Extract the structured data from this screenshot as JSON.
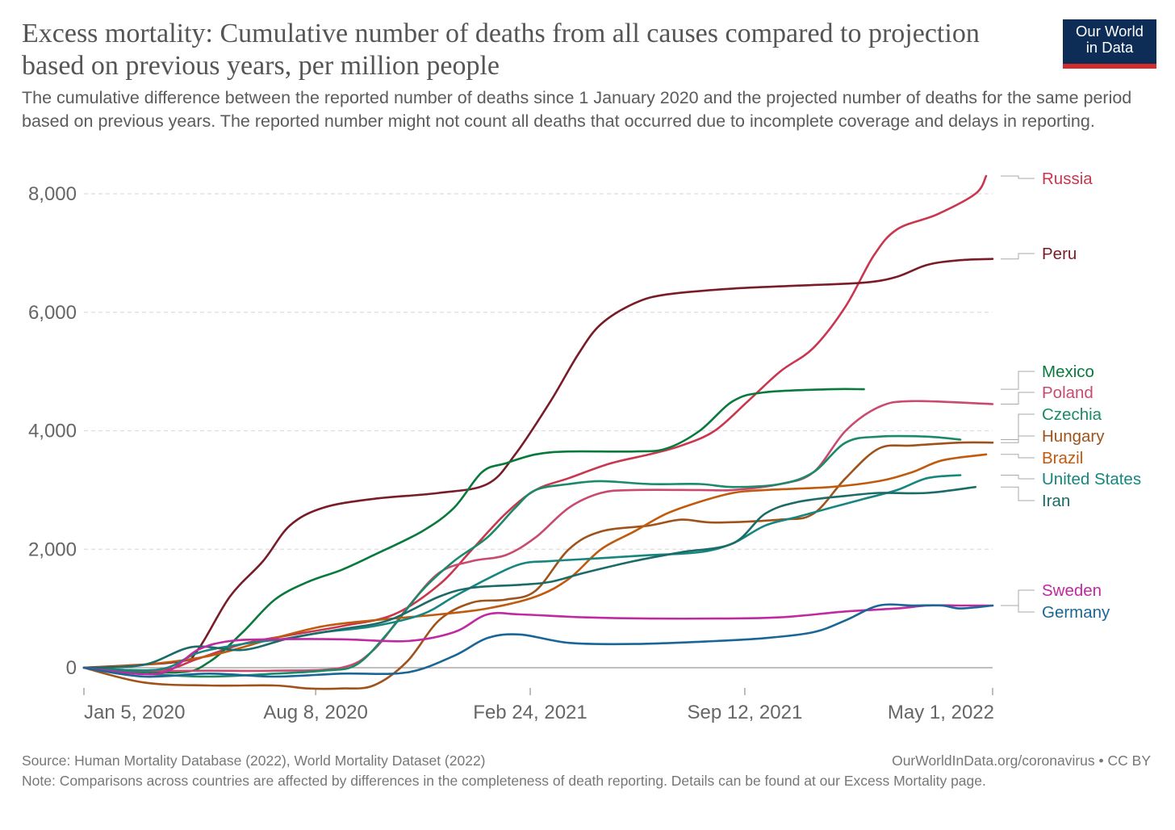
{
  "chart_data": {
    "type": "line",
    "title": "Excess mortality: Cumulative number of deaths from all causes compared to projection based on previous years, per million people",
    "subtitle": "The cumulative difference between the reported number of deaths since 1 January 2020 and the projected number of deaths for the same period based on previous years. The reported number might not count all deaths that occurred due to incomplete coverage and delays in reporting.",
    "xlabel": "",
    "ylabel": "",
    "x_ticks": [
      "Jan 5, 2020",
      "Aug 8, 2020",
      "Feb 24, 2021",
      "Sep 12, 2021",
      "May 1, 2022"
    ],
    "x_tick_dates": [
      "2020-01-05",
      "2020-08-08",
      "2021-02-24",
      "2021-09-12",
      "2022-05-01"
    ],
    "y_ticks": [
      0,
      2000,
      4000,
      6000,
      8000
    ],
    "y_tick_labels": [
      "0",
      "2,000",
      "4,000",
      "6,000",
      "8,000"
    ],
    "xlim": [
      "2020-01-05",
      "2022-05-01"
    ],
    "ylim": [
      -500,
      8500
    ],
    "grid": {
      "horizontal": true,
      "vertical": false
    },
    "legend": "right, labels at line ends",
    "series": [
      {
        "name": "Russia",
        "color": "#c9374f",
        "points": [
          [
            "2020-01-05",
            0
          ],
          [
            "2020-03-15",
            -50
          ],
          [
            "2020-04-20",
            150
          ],
          [
            "2020-06-01",
            400
          ],
          [
            "2020-07-15",
            550
          ],
          [
            "2020-09-01",
            700
          ],
          [
            "2020-10-20",
            900
          ],
          [
            "2020-12-01",
            1400
          ],
          [
            "2021-01-01",
            2000
          ],
          [
            "2021-02-01",
            2600
          ],
          [
            "2021-03-01",
            3000
          ],
          [
            "2021-04-01",
            3200
          ],
          [
            "2021-05-10",
            3450
          ],
          [
            "2021-06-15",
            3600
          ],
          [
            "2021-07-15",
            3750
          ],
          [
            "2021-08-15",
            4000
          ],
          [
            "2021-09-15",
            4500
          ],
          [
            "2021-10-15",
            5000
          ],
          [
            "2021-11-15",
            5400
          ],
          [
            "2021-12-15",
            6100
          ],
          [
            "2022-01-10",
            6950
          ],
          [
            "2022-02-01",
            7400
          ],
          [
            "2022-03-10",
            7650
          ],
          [
            "2022-04-15",
            8000
          ],
          [
            "2022-04-25",
            8300
          ]
        ]
      },
      {
        "name": "Peru",
        "color": "#791c28",
        "points": [
          [
            "2020-01-05",
            0
          ],
          [
            "2020-04-01",
            100
          ],
          [
            "2020-04-20",
            300
          ],
          [
            "2020-05-20",
            1200
          ],
          [
            "2020-06-20",
            1800
          ],
          [
            "2020-07-15",
            2400
          ],
          [
            "2020-08-15",
            2700
          ],
          [
            "2020-10-01",
            2850
          ],
          [
            "2020-12-01",
            2950
          ],
          [
            "2021-01-15",
            3100
          ],
          [
            "2021-02-10",
            3600
          ],
          [
            "2021-03-15",
            4500
          ],
          [
            "2021-04-10",
            5300
          ],
          [
            "2021-05-01",
            5800
          ],
          [
            "2021-06-01",
            6150
          ],
          [
            "2021-07-01",
            6300
          ],
          [
            "2021-09-01",
            6400
          ],
          [
            "2021-11-01",
            6450
          ],
          [
            "2022-01-01",
            6500
          ],
          [
            "2022-02-01",
            6600
          ],
          [
            "2022-03-01",
            6800
          ],
          [
            "2022-04-01",
            6880
          ],
          [
            "2022-05-01",
            6900
          ]
        ]
      },
      {
        "name": "Mexico",
        "color": "#0a7a3c",
        "points": [
          [
            "2020-01-05",
            0
          ],
          [
            "2020-04-01",
            -80
          ],
          [
            "2020-05-01",
            100
          ],
          [
            "2020-06-01",
            600
          ],
          [
            "2020-07-01",
            1150
          ],
          [
            "2020-08-01",
            1450
          ],
          [
            "2020-09-01",
            1650
          ],
          [
            "2020-10-01",
            1900
          ],
          [
            "2020-11-15",
            2300
          ],
          [
            "2020-12-15",
            2700
          ],
          [
            "2021-01-10",
            3300
          ],
          [
            "2021-02-01",
            3450
          ],
          [
            "2021-03-01",
            3600
          ],
          [
            "2021-04-01",
            3650
          ],
          [
            "2021-06-01",
            3650
          ],
          [
            "2021-07-01",
            3700
          ],
          [
            "2021-08-01",
            4000
          ],
          [
            "2021-09-01",
            4500
          ],
          [
            "2021-10-01",
            4650
          ],
          [
            "2021-12-01",
            4700
          ],
          [
            "2022-01-01",
            4700
          ]
        ]
      },
      {
        "name": "Poland",
        "color": "#c84a6f",
        "points": [
          [
            "2020-01-05",
            0
          ],
          [
            "2020-03-01",
            -50
          ],
          [
            "2020-05-01",
            -50
          ],
          [
            "2020-07-01",
            -50
          ],
          [
            "2020-09-01",
            0
          ],
          [
            "2020-10-01",
            300
          ],
          [
            "2020-11-01",
            1000
          ],
          [
            "2020-12-01",
            1600
          ],
          [
            "2021-01-01",
            1800
          ],
          [
            "2021-02-01",
            1900
          ],
          [
            "2021-03-01",
            2200
          ],
          [
            "2021-04-01",
            2700
          ],
          [
            "2021-05-01",
            2950
          ],
          [
            "2021-06-01",
            3000
          ],
          [
            "2021-08-01",
            3000
          ],
          [
            "2021-09-01",
            3000
          ],
          [
            "2021-10-15",
            3100
          ],
          [
            "2021-11-15",
            3300
          ],
          [
            "2021-12-15",
            4000
          ],
          [
            "2022-01-15",
            4400
          ],
          [
            "2022-02-15",
            4500
          ],
          [
            "2022-05-01",
            4450
          ]
        ]
      },
      {
        "name": "Czechia",
        "color": "#1a8a6a",
        "points": [
          [
            "2020-01-05",
            0
          ],
          [
            "2020-03-01",
            -100
          ],
          [
            "2020-05-01",
            -150
          ],
          [
            "2020-07-01",
            -100
          ],
          [
            "2020-08-15",
            -50
          ],
          [
            "2020-09-15",
            50
          ],
          [
            "2020-10-15",
            600
          ],
          [
            "2020-11-15",
            1300
          ],
          [
            "2020-12-15",
            1800
          ],
          [
            "2021-01-15",
            2200
          ],
          [
            "2021-02-10",
            2700
          ],
          [
            "2021-03-01",
            3000
          ],
          [
            "2021-04-01",
            3100
          ],
          [
            "2021-05-01",
            3150
          ],
          [
            "2021-06-15",
            3100
          ],
          [
            "2021-08-01",
            3100
          ],
          [
            "2021-09-01",
            3050
          ],
          [
            "2021-10-15",
            3100
          ],
          [
            "2021-11-15",
            3300
          ],
          [
            "2021-12-15",
            3800
          ],
          [
            "2022-01-15",
            3900
          ],
          [
            "2022-03-01",
            3900
          ],
          [
            "2022-04-01",
            3850
          ]
        ]
      },
      {
        "name": "Hungary",
        "color": "#a0521b",
        "points": [
          [
            "2020-01-05",
            0
          ],
          [
            "2020-03-01",
            -250
          ],
          [
            "2020-05-01",
            -300
          ],
          [
            "2020-07-01",
            -300
          ],
          [
            "2020-08-01",
            -350
          ],
          [
            "2020-09-01",
            -350
          ],
          [
            "2020-10-01",
            -300
          ],
          [
            "2020-11-01",
            100
          ],
          [
            "2020-12-01",
            800
          ],
          [
            "2021-01-01",
            1100
          ],
          [
            "2021-02-01",
            1150
          ],
          [
            "2021-03-01",
            1300
          ],
          [
            "2021-04-01",
            2000
          ],
          [
            "2021-05-01",
            2300
          ],
          [
            "2021-06-15",
            2400
          ],
          [
            "2021-07-15",
            2500
          ],
          [
            "2021-08-15",
            2450
          ],
          [
            "2021-10-15",
            2500
          ],
          [
            "2021-11-15",
            2600
          ],
          [
            "2021-12-15",
            3200
          ],
          [
            "2022-01-15",
            3700
          ],
          [
            "2022-02-15",
            3750
          ],
          [
            "2022-04-01",
            3800
          ],
          [
            "2022-05-01",
            3800
          ]
        ]
      },
      {
        "name": "Brazil",
        "color": "#c05a0f",
        "points": [
          [
            "2020-01-05",
            0
          ],
          [
            "2020-03-01",
            50
          ],
          [
            "2020-05-01",
            200
          ],
          [
            "2020-07-01",
            500
          ],
          [
            "2020-08-15",
            700
          ],
          [
            "2020-10-01",
            800
          ],
          [
            "2020-12-01",
            900
          ],
          [
            "2021-01-15",
            1000
          ],
          [
            "2021-03-01",
            1200
          ],
          [
            "2021-04-01",
            1500
          ],
          [
            "2021-05-01",
            2000
          ],
          [
            "2021-06-01",
            2300
          ],
          [
            "2021-07-01",
            2600
          ],
          [
            "2021-08-01",
            2800
          ],
          [
            "2021-09-01",
            2950
          ],
          [
            "2021-10-01",
            3000
          ],
          [
            "2021-12-01",
            3050
          ],
          [
            "2022-01-15",
            3150
          ],
          [
            "2022-02-15",
            3300
          ],
          [
            "2022-03-15",
            3500
          ],
          [
            "2022-04-25",
            3600
          ]
        ]
      },
      {
        "name": "United States",
        "color": "#16867f",
        "points": [
          [
            "2020-01-05",
            0
          ],
          [
            "2020-03-15",
            -30
          ],
          [
            "2020-04-20",
            250
          ],
          [
            "2020-06-01",
            400
          ],
          [
            "2020-07-15",
            500
          ],
          [
            "2020-08-15",
            600
          ],
          [
            "2020-10-01",
            700
          ],
          [
            "2020-11-15",
            900
          ],
          [
            "2020-12-15",
            1200
          ],
          [
            "2021-01-15",
            1500
          ],
          [
            "2021-02-15",
            1750
          ],
          [
            "2021-03-15",
            1800
          ],
          [
            "2021-05-01",
            1850
          ],
          [
            "2021-06-15",
            1900
          ],
          [
            "2021-08-01",
            1950
          ],
          [
            "2021-09-01",
            2100
          ],
          [
            "2021-10-01",
            2400
          ],
          [
            "2021-11-01",
            2550
          ],
          [
            "2021-12-01",
            2700
          ],
          [
            "2022-01-01",
            2850
          ],
          [
            "2022-02-01",
            3000
          ],
          [
            "2022-03-01",
            3200
          ],
          [
            "2022-04-01",
            3250
          ]
        ]
      },
      {
        "name": "Iran",
        "color": "#1b6b68",
        "points": [
          [
            "2020-01-05",
            0
          ],
          [
            "2020-03-01",
            50
          ],
          [
            "2020-04-15",
            350
          ],
          [
            "2020-06-01",
            300
          ],
          [
            "2020-07-15",
            500
          ],
          [
            "2020-09-01",
            650
          ],
          [
            "2020-10-15",
            800
          ],
          [
            "2020-12-01",
            1200
          ],
          [
            "2021-01-01",
            1350
          ],
          [
            "2021-02-15",
            1400
          ],
          [
            "2021-03-15",
            1450
          ],
          [
            "2021-04-15",
            1600
          ],
          [
            "2021-06-01",
            1800
          ],
          [
            "2021-07-15",
            1950
          ],
          [
            "2021-09-01",
            2100
          ],
          [
            "2021-10-01",
            2600
          ],
          [
            "2021-11-01",
            2800
          ],
          [
            "2021-12-15",
            2900
          ],
          [
            "2022-01-15",
            2950
          ],
          [
            "2022-03-01",
            2950
          ],
          [
            "2022-04-15",
            3050
          ]
        ]
      },
      {
        "name": "Sweden",
        "color": "#c02aa0",
        "points": [
          [
            "2020-01-05",
            0
          ],
          [
            "2020-03-15",
            -100
          ],
          [
            "2020-04-20",
            300
          ],
          [
            "2020-05-20",
            450
          ],
          [
            "2020-07-01",
            480
          ],
          [
            "2020-09-01",
            480
          ],
          [
            "2020-11-01",
            450
          ],
          [
            "2020-12-15",
            600
          ],
          [
            "2021-01-15",
            900
          ],
          [
            "2021-02-15",
            900
          ],
          [
            "2021-04-15",
            850
          ],
          [
            "2021-06-15",
            830
          ],
          [
            "2021-08-15",
            830
          ],
          [
            "2021-10-15",
            850
          ],
          [
            "2021-12-15",
            950
          ],
          [
            "2022-02-01",
            1000
          ],
          [
            "2022-03-01",
            1050
          ],
          [
            "2022-04-01",
            1050
          ],
          [
            "2022-05-01",
            1050
          ]
        ]
      },
      {
        "name": "Germany",
        "color": "#1a6696",
        "points": [
          [
            "2020-01-05",
            0
          ],
          [
            "2020-03-01",
            -150
          ],
          [
            "2020-05-01",
            -100
          ],
          [
            "2020-07-01",
            -150
          ],
          [
            "2020-09-01",
            -100
          ],
          [
            "2020-11-01",
            -80
          ],
          [
            "2020-12-15",
            200
          ],
          [
            "2021-01-15",
            500
          ],
          [
            "2021-02-15",
            560
          ],
          [
            "2021-04-01",
            420
          ],
          [
            "2021-06-01",
            400
          ],
          [
            "2021-08-15",
            450
          ],
          [
            "2021-10-01",
            500
          ],
          [
            "2021-11-15",
            600
          ],
          [
            "2021-12-15",
            800
          ],
          [
            "2022-01-15",
            1050
          ],
          [
            "2022-02-15",
            1050
          ],
          [
            "2022-03-15",
            1050
          ],
          [
            "2022-04-01",
            1000
          ],
          [
            "2022-05-01",
            1050
          ]
        ]
      }
    ]
  },
  "header": {
    "title": "Excess mortality: Cumulative number of deaths from all causes compared to projection based on previous years, per million people",
    "subtitle": "The cumulative difference between the reported number of deaths since 1 January 2020 and the projected number of deaths for the same period based on previous years. The reported number might not count all deaths that occurred due to incomplete coverage and delays in reporting.",
    "logo_line1": "Our World",
    "logo_line2": "in Data"
  },
  "footer": {
    "source": "Source: Human Mortality Database (2022), World Mortality Dataset (2022)",
    "license": "OurWorldInData.org/coronavirus • CC BY",
    "note": "Note: Comparisons across countries are affected by differences in the completeness of death reporting. Details can be found at our Excess Mortality page."
  },
  "colors": {
    "grid": "#dddddd",
    "axis": "#999999",
    "tick_text": "#666666",
    "logo_bg": "#0d2d57",
    "logo_accent": "#d42b2b"
  }
}
